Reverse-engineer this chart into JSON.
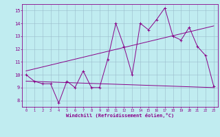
{
  "xlabel": "Windchill (Refroidissement éolien,°C)",
  "bg_color": "#c0ecf0",
  "line_color": "#880088",
  "grid_color": "#99bbcc",
  "xlim": [
    -0.5,
    23.5
  ],
  "ylim": [
    7.5,
    15.5
  ],
  "xticks": [
    0,
    1,
    2,
    3,
    4,
    5,
    6,
    7,
    8,
    9,
    10,
    11,
    12,
    13,
    14,
    15,
    16,
    17,
    18,
    19,
    20,
    21,
    22,
    23
  ],
  "yticks": [
    8,
    9,
    10,
    11,
    12,
    13,
    14,
    15
  ],
  "main_data": [
    [
      0,
      10.0
    ],
    [
      1,
      9.5
    ],
    [
      2,
      9.3
    ],
    [
      3,
      9.3
    ],
    [
      4,
      7.8
    ],
    [
      5,
      9.5
    ],
    [
      6,
      9.0
    ],
    [
      7,
      10.3
    ],
    [
      8,
      9.0
    ],
    [
      9,
      9.0
    ],
    [
      10,
      11.2
    ],
    [
      11,
      14.0
    ],
    [
      12,
      12.2
    ],
    [
      13,
      10.0
    ],
    [
      14,
      14.0
    ],
    [
      15,
      13.5
    ],
    [
      16,
      14.3
    ],
    [
      17,
      15.2
    ],
    [
      18,
      13.0
    ],
    [
      19,
      12.7
    ],
    [
      20,
      13.7
    ],
    [
      21,
      12.2
    ],
    [
      22,
      11.5
    ],
    [
      23,
      9.1
    ]
  ],
  "upper_line": [
    [
      0,
      10.3
    ],
    [
      23,
      13.8
    ]
  ],
  "lower_line": [
    [
      0,
      9.5
    ],
    [
      23,
      9.0
    ]
  ]
}
